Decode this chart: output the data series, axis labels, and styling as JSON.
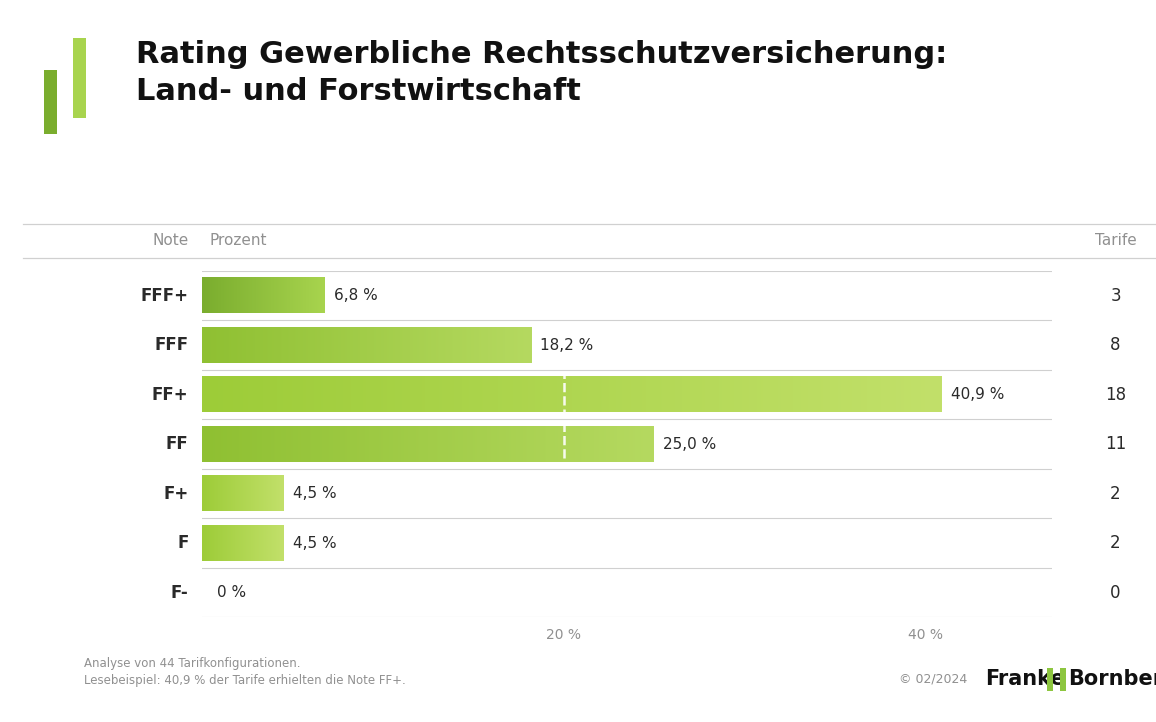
{
  "title_line1": "Rating Gewerbliche Rechtsschutzversicherung:",
  "title_line2": "Land- und Forstwirtschaft",
  "categories": [
    "FFF+",
    "FFF",
    "FF+",
    "FF",
    "F+",
    "F",
    "F-"
  ],
  "values": [
    6.8,
    18.2,
    40.9,
    25.0,
    4.5,
    4.5,
    0.0
  ],
  "tarife": [
    3,
    8,
    18,
    11,
    2,
    2,
    0
  ],
  "value_labels": [
    "6,8 %",
    "18,2 %",
    "40,9 %",
    "25,0 %",
    "4,5 %",
    "4,5 %",
    "0 %"
  ],
  "bar_color_left": [
    "#7aad2e",
    "#8fc032",
    "#9dcc38",
    "#8fc032",
    "#9dcc38",
    "#9dcc38",
    "#b8d96b"
  ],
  "bar_color_right": [
    "#a8d44e",
    "#b5d960",
    "#c2e06a",
    "#b5d960",
    "#c2e06a",
    "#c2e06a",
    "#d4e88a"
  ],
  "dashed_line_x": 20.0,
  "col_note": "Note",
  "col_prozent": "Prozent",
  "col_tarife": "Tarife",
  "footer_line1": "Analyse von 44 Tarifkonfigurationen.",
  "footer_line2": "Lesebeispiel: 40,9 % der Tarife erhielten die Note FF+.",
  "footer_date": "© 02/2024",
  "background_color": "#ffffff",
  "text_color_dark": "#2a2a2a",
  "text_color_gray": "#909090",
  "sep_color": "#d0d0d0",
  "green1": "#8dc63f",
  "green2": "#a8d44e",
  "title_fontsize": 22,
  "xlim_max": 47
}
